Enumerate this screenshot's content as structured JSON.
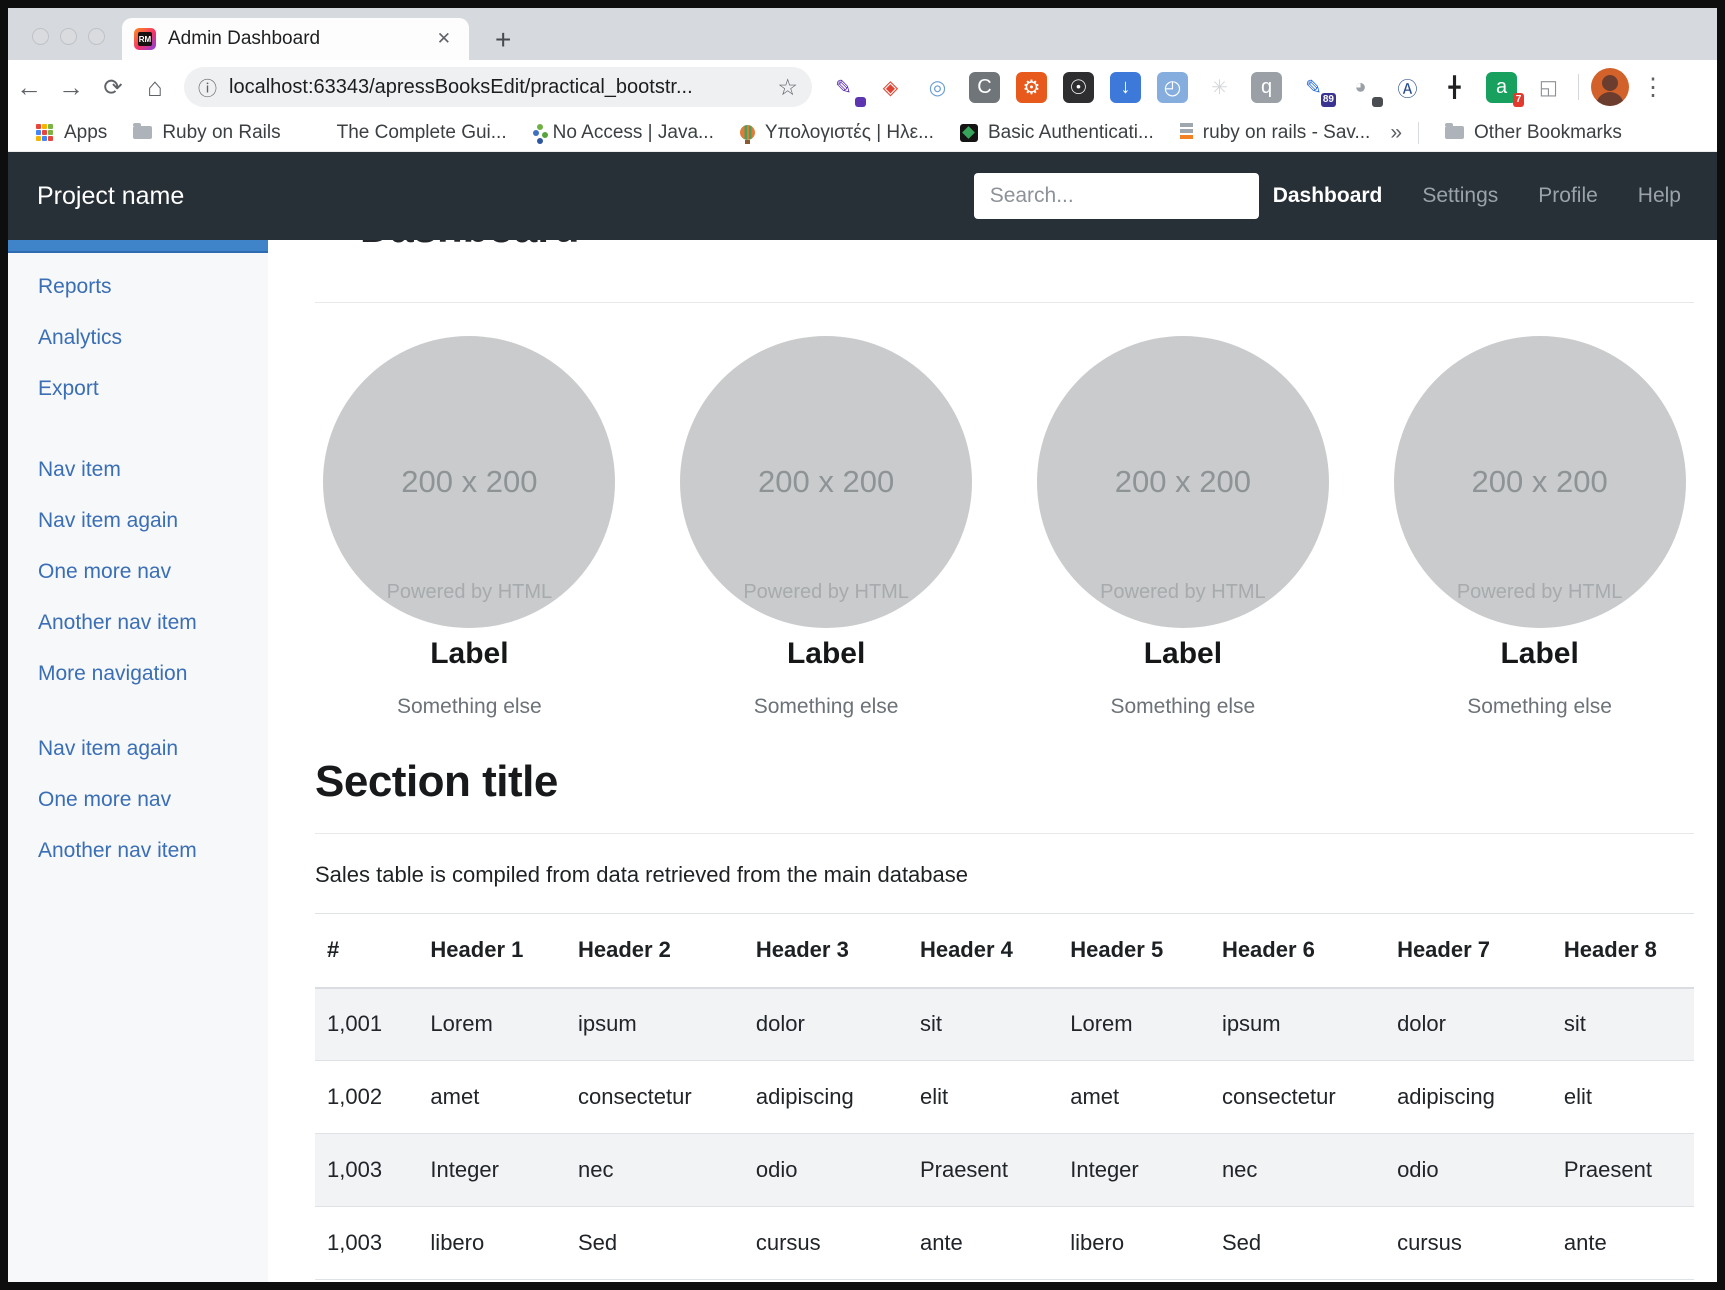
{
  "browser": {
    "tab_title": "Admin Dashboard",
    "favicon_text": "RM",
    "tab_close_glyph": "✕",
    "new_tab_glyph": "+",
    "back_glyph": "←",
    "forward_glyph": "→",
    "reload_glyph": "⟳",
    "home_glyph": "⌂",
    "url_info_glyph": "ⓘ",
    "url": "localhost:63343/apressBooksEdit/practical_bootstr...",
    "star_glyph": "☆",
    "menu_glyph": "⋮",
    "overflow_glyph": "»",
    "extensions": [
      {
        "name": "color-picker-icon",
        "glyph": "✎",
        "fg": "#5e35b1",
        "bg": "transparent",
        "badge": "",
        "badge_bg": "#5e35b1"
      },
      {
        "name": "people-share-icon",
        "glyph": "◈",
        "fg": "#e04433",
        "bg": "transparent"
      },
      {
        "name": "swirl-icon",
        "glyph": "◎",
        "fg": "#6d9fd4",
        "bg": "transparent"
      },
      {
        "name": "letter-c-icon",
        "glyph": "C",
        "fg": "#ffffff",
        "bg": "#70757a"
      },
      {
        "name": "gear-icon",
        "glyph": "⚙",
        "fg": "#ffffff",
        "bg": "#e8591c"
      },
      {
        "name": "lightbulb-icon",
        "glyph": "☉",
        "fg": "#ffffff",
        "bg": "#2e2e30"
      },
      {
        "name": "download-icon",
        "glyph": "↓",
        "fg": "#ffffff",
        "bg": "#3d79d8"
      },
      {
        "name": "window-gauge-icon",
        "glyph": "◴",
        "fg": "#ffffff",
        "bg": "#85aede"
      },
      {
        "name": "flower-icon",
        "glyph": "✳",
        "fg": "#d4d7da",
        "bg": "transparent"
      },
      {
        "name": "quote-bubble-icon",
        "glyph": "q",
        "fg": "#ffffff",
        "bg": "#9aa0a6"
      },
      {
        "name": "pencil-icon",
        "glyph": "✎",
        "fg": "#2f6fd6",
        "bg": "transparent",
        "badge": "89",
        "badge_bg": "#3b3390"
      },
      {
        "name": "palette-icon",
        "glyph": "◕",
        "fg": "#9aa0a6",
        "bg": "transparent",
        "badge": "",
        "badge_bg": "#4a4d52"
      },
      {
        "name": "circled-a-icon",
        "glyph": "Ⓐ",
        "fg": "#2b4f8e",
        "bg": "transparent"
      },
      {
        "name": "crosshair-icon",
        "glyph": "╋",
        "fg": "#1f2123",
        "bg": "transparent"
      },
      {
        "name": "grammarly-icon",
        "glyph": "a",
        "fg": "#ffffff",
        "bg": "#17a05e",
        "badge": "7",
        "badge_bg": "#e23b2e"
      },
      {
        "name": "windows-stack-icon",
        "glyph": "◱",
        "fg": "#8d9297",
        "bg": "transparent"
      }
    ],
    "bookmarks": [
      {
        "label": "Apps",
        "icon": "apps-grid"
      },
      {
        "label": "Ruby on Rails",
        "icon": "folder"
      },
      {
        "label": "The Complete Gui...",
        "icon": "ab"
      },
      {
        "label": "No Access | Java...",
        "icon": "sparkle"
      },
      {
        "label": "Υπολογιστές | Ηλε...",
        "icon": "balloon"
      },
      {
        "label": "Basic Authenticati...",
        "icon": "green-diamond"
      },
      {
        "label": "ruby on rails - Sav...",
        "icon": "stack"
      }
    ],
    "other_bookmarks_label": "Other Bookmarks"
  },
  "navbar": {
    "brand": "Project name",
    "search_placeholder": "Search...",
    "links": [
      {
        "label": "Dashboard",
        "active": true
      },
      {
        "label": "Settings",
        "active": false
      },
      {
        "label": "Profile",
        "active": false
      },
      {
        "label": "Help",
        "active": false
      }
    ]
  },
  "sidebar": {
    "groups": [
      [
        "Reports",
        "Analytics",
        "Export"
      ],
      [
        "Nav item",
        "Nav item again",
        "One more nav",
        "Another nav item",
        "More navigation"
      ],
      [
        "Nav item again",
        "One more nav",
        "Another nav item"
      ]
    ]
  },
  "main": {
    "hidden_heading": "Dashboard",
    "cards": [
      {
        "placeholder": "200 x 200",
        "watermark": "Powered by HTML",
        "label": "Label",
        "sub": "Something else"
      },
      {
        "placeholder": "200 x 200",
        "watermark": "Powered by HTML",
        "label": "Label",
        "sub": "Something else"
      },
      {
        "placeholder": "200 x 200",
        "watermark": "Powered by HTML",
        "label": "Label",
        "sub": "Something else"
      },
      {
        "placeholder": "200 x 200",
        "watermark": "Powered by HTML",
        "label": "Label",
        "sub": "Something else"
      }
    ],
    "section_title": "Section title",
    "table_caption": "Sales table is compiled from data retrieved from the main database",
    "table": {
      "headers": [
        "#",
        "Header 1",
        "Header 2",
        "Header 3",
        "Header 4",
        "Header 5",
        "Header 6",
        "Header 7",
        "Header 8"
      ],
      "rows": [
        [
          "1,001",
          "Lorem",
          "ipsum",
          "dolor",
          "sit",
          "Lorem",
          "ipsum",
          "dolor",
          "sit"
        ],
        [
          "1,002",
          "amet",
          "consectetur",
          "adipiscing",
          "elit",
          "amet",
          "consectetur",
          "adipiscing",
          "elit"
        ],
        [
          "1,003",
          "Integer",
          "nec",
          "odio",
          "Praesent",
          "Integer",
          "nec",
          "odio",
          "Praesent"
        ],
        [
          "1,003",
          "libero",
          "Sed",
          "cursus",
          "ante",
          "libero",
          "Sed",
          "cursus",
          "ante"
        ]
      ]
    }
  },
  "colors": {
    "navbar_bg": "#272f37",
    "sidebar_bg": "#f7f8f9",
    "sidebar_link": "#3a6eb5",
    "active_strip": "#3f83c8",
    "table_stripe": "#f2f3f5",
    "placeholder_circle": "#c9cbcc"
  }
}
